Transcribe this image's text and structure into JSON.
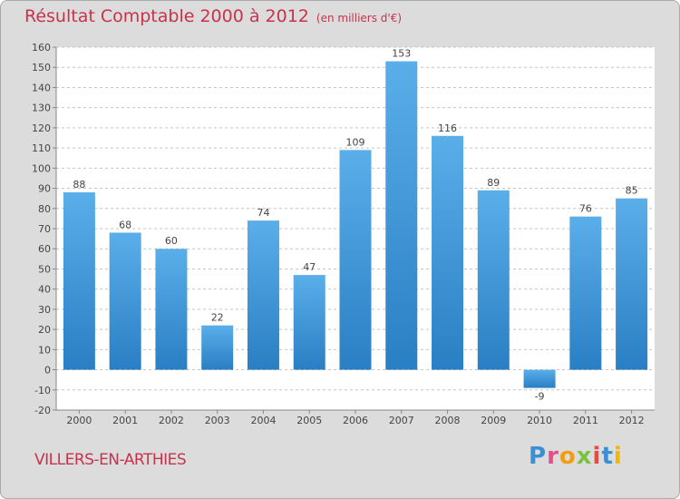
{
  "chart_data": {
    "type": "bar",
    "title": "Résultat Comptable 2000 à 2012",
    "subtitle": "(en milliers d'€)",
    "categories": [
      "2000",
      "2001",
      "2002",
      "2003",
      "2004",
      "2005",
      "2006",
      "2007",
      "2008",
      "2009",
      "2010",
      "2011",
      "2012"
    ],
    "values": [
      88,
      68,
      60,
      22,
      74,
      47,
      109,
      153,
      116,
      89,
      -9,
      76,
      85
    ],
    "ylim": [
      -20,
      160
    ],
    "yticks": [
      -20,
      -10,
      0,
      10,
      20,
      30,
      40,
      50,
      60,
      70,
      80,
      90,
      100,
      110,
      120,
      130,
      140,
      150,
      160
    ],
    "xlabel": "",
    "ylabel": "",
    "grid": true,
    "bar_color_top": "#5aaee9",
    "bar_color_bottom": "#2a7fc4"
  },
  "footer": {
    "commune": "VILLERS-EN-ARTHIES",
    "logo": "Proxiti"
  },
  "colors": {
    "title": "#c8324b",
    "background": "#dcdcdc",
    "plot_background": "#ffffff"
  }
}
